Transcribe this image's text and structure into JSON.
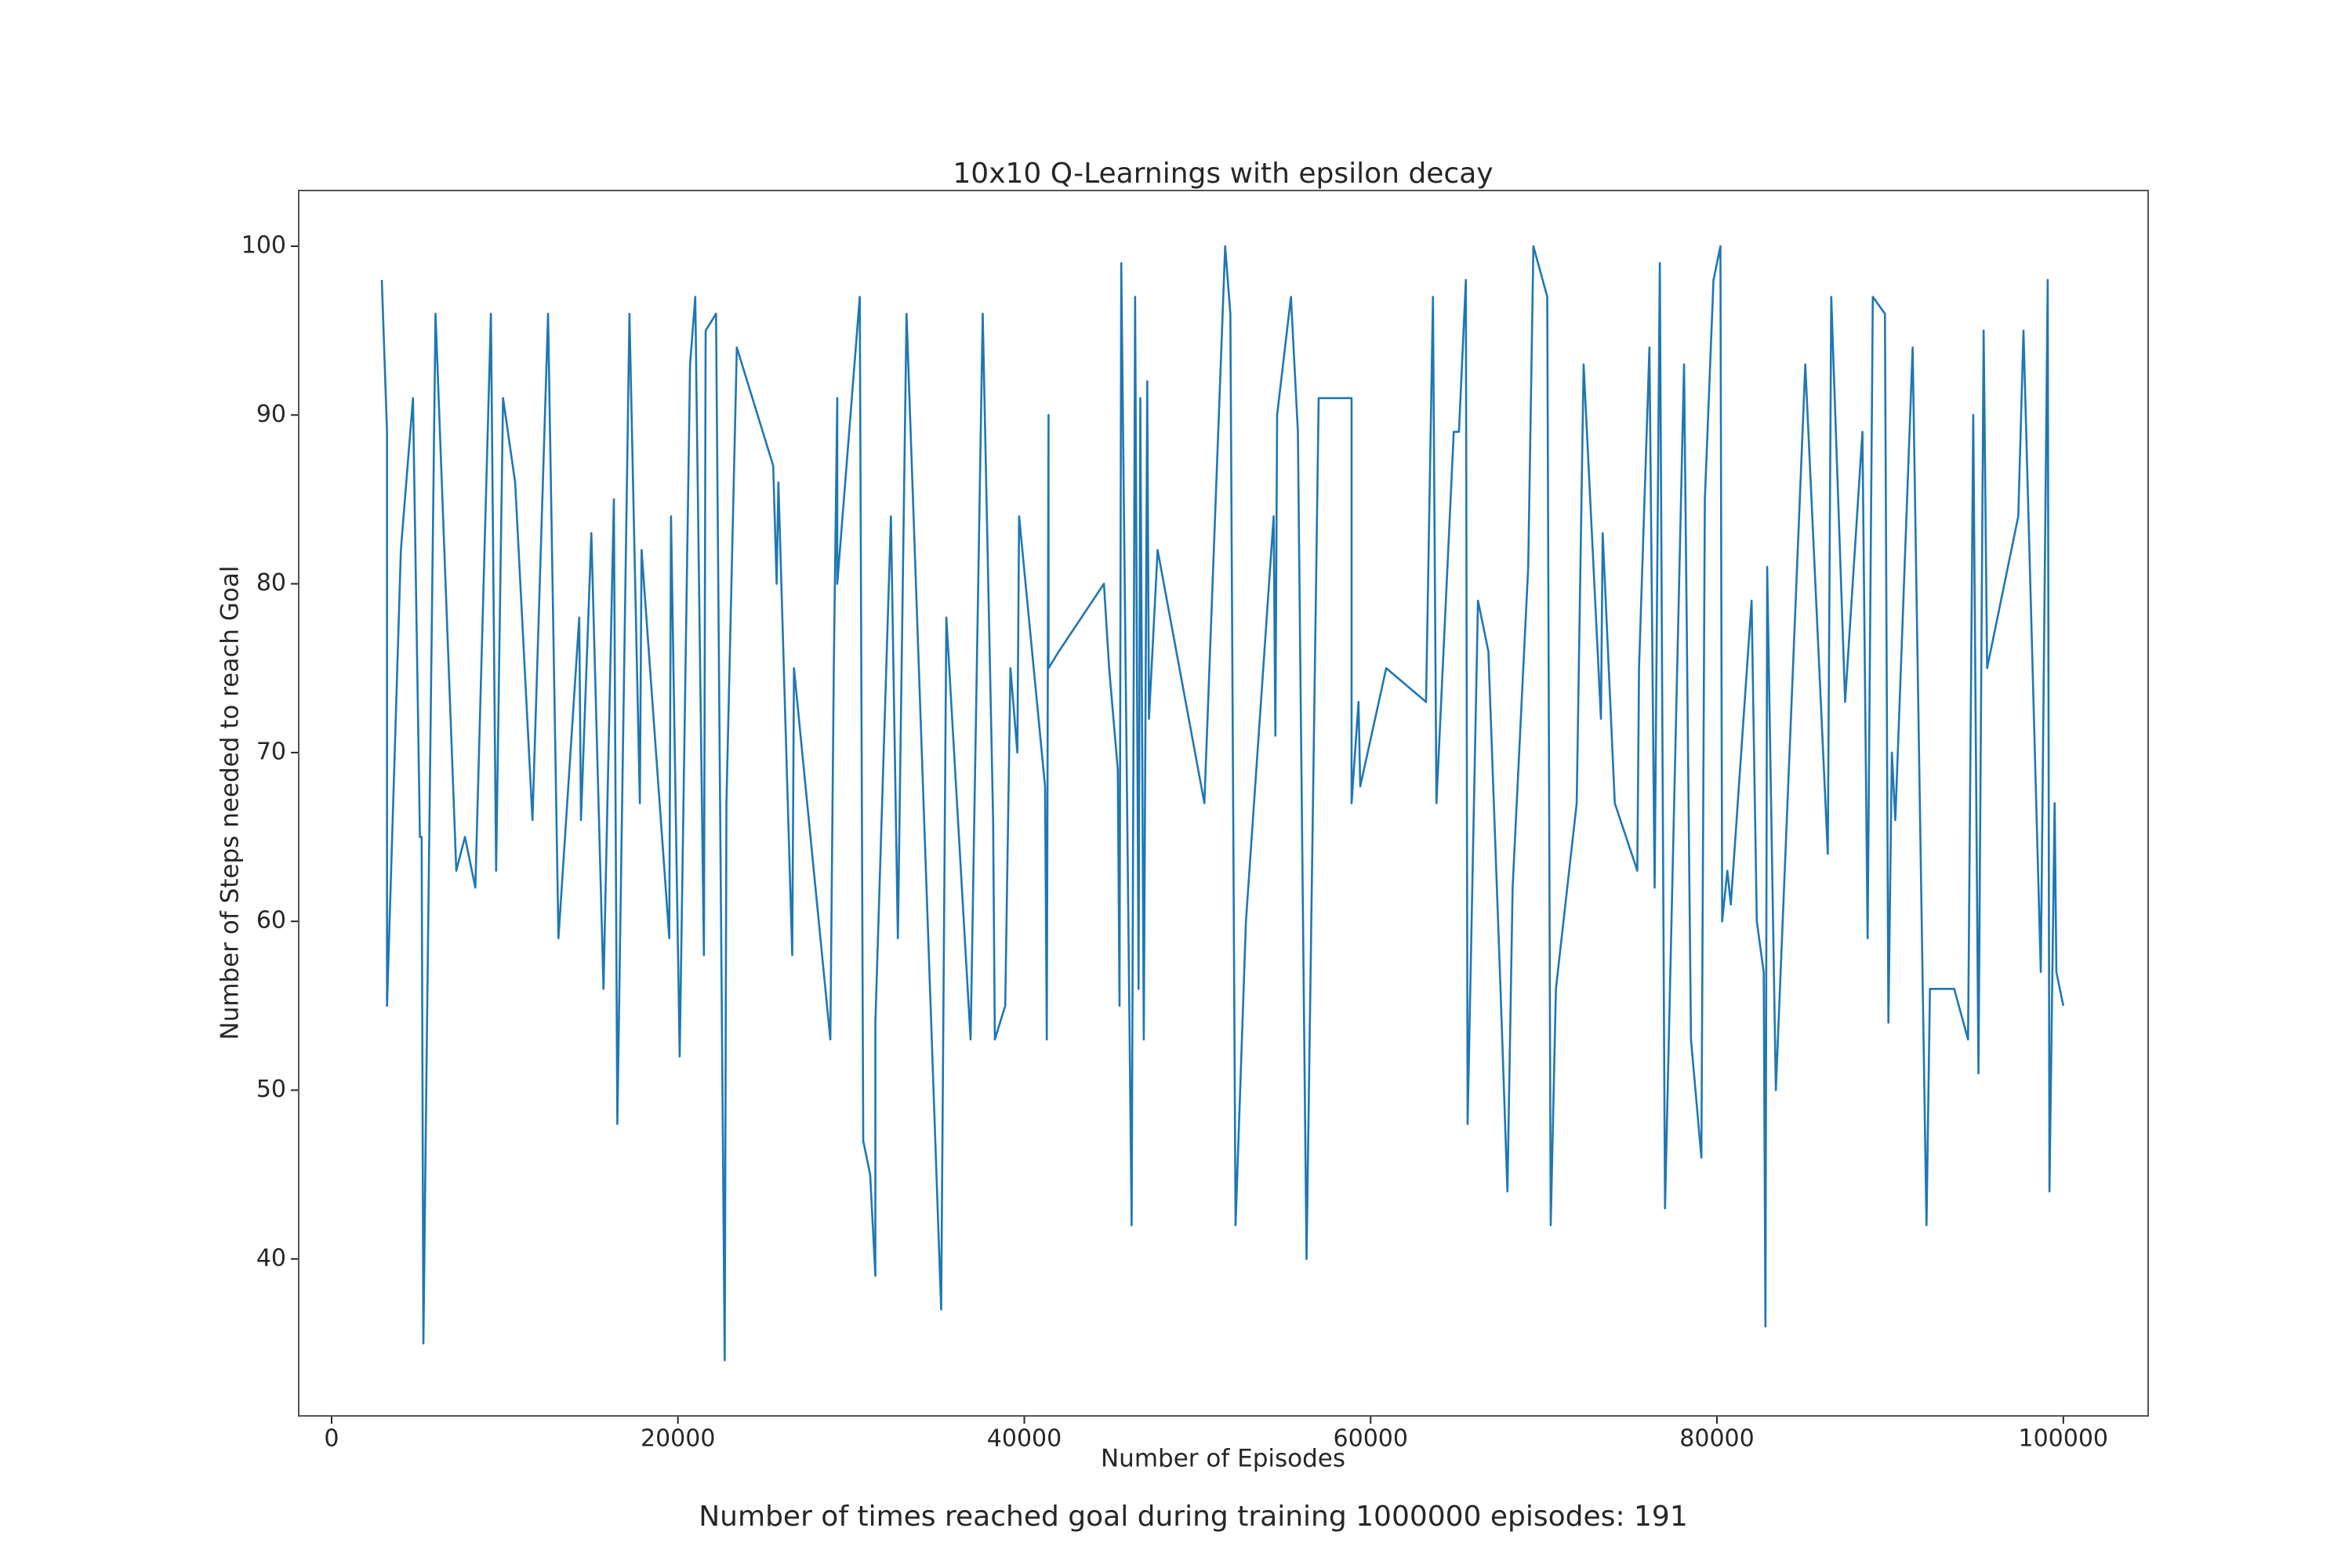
{
  "chart_data": {
    "type": "line",
    "title": "10x10 Q-Learnings with epsilon decay",
    "x_label": "Number of Episodes",
    "y_label": "Number of Steps needed to reach Goal",
    "annotation": "Number of times reached goal during training 1000000 episodes: 191",
    "color": "#1f77b4",
    "xlim": [
      -1900,
      104900
    ],
    "ylim": [
      30.7,
      103.3
    ],
    "xticks": [
      0,
      20000,
      40000,
      60000,
      80000,
      100000
    ],
    "yticks": [
      40,
      50,
      60,
      70,
      80,
      90,
      100
    ],
    "x": [
      2900,
      3200,
      3200,
      4000,
      4700,
      5100,
      5200,
      5300,
      5500,
      6000,
      7200,
      7700,
      8300,
      9200,
      9500,
      9900,
      10600,
      11600,
      12500,
      13100,
      14300,
      14400,
      15000,
      15700,
      16300,
      16500,
      17200,
      17800,
      17900,
      19500,
      19600,
      20100,
      20700,
      21000,
      21500,
      21600,
      22200,
      22700,
      22800,
      23400,
      25500,
      25700,
      25800,
      26600,
      26700,
      28800,
      29000,
      29200,
      29200,
      30500,
      30700,
      31100,
      31400,
      31400,
      32300,
      32700,
      33200,
      35200,
      35500,
      36900,
      37600,
      38200,
      38300,
      38900,
      39200,
      39600,
      39700,
      41200,
      41300,
      41400,
      41400,
      42000,
      44600,
      44900,
      45400,
      45500,
      45600,
      46200,
      46400,
      46600,
      46700,
      46900,
      47100,
      47200,
      47700,
      50400,
      51600,
      51900,
      52200,
      52800,
      54400,
      54500,
      54600,
      55400,
      55800,
      56300,
      57000,
      58900,
      58900,
      59300,
      59400,
      60900,
      63200,
      63600,
      63800,
      64800,
      65100,
      65500,
      65600,
      66200,
      66800,
      67500,
      67900,
      68200,
      69100,
      69400,
      70200,
      70400,
      70700,
      71900,
      72300,
      73300,
      73400,
      74100,
      75400,
      75500,
      76100,
      76400,
      76700,
      77000,
      78100,
      78500,
      79100,
      79300,
      79800,
      80200,
      80300,
      80600,
      80800,
      82000,
      82300,
      82700,
      82800,
      82900,
      83400,
      85100,
      86400,
      86600,
      87400,
      88400,
      88700,
      89000,
      89700,
      89900,
      90100,
      90300,
      91300,
      92100,
      92300,
      93700,
      94500,
      94800,
      95100,
      95400,
      95600,
      97400,
      97700,
      98700,
      99100,
      99200,
      99500,
      99600,
      100000
    ],
    "values": [
      98,
      89,
      55,
      82,
      91,
      65,
      65,
      35,
      53,
      96,
      63,
      65,
      62,
      96,
      63,
      91,
      86,
      66,
      96,
      59,
      78,
      66,
      83,
      56,
      85,
      48,
      96,
      67,
      82,
      59,
      84,
      52,
      93,
      97,
      58,
      95,
      96,
      34,
      67,
      94,
      87,
      80,
      86,
      58,
      75,
      53,
      75,
      91,
      80,
      97,
      47,
      45,
      39,
      54,
      84,
      59,
      96,
      37,
      78,
      53,
      96,
      66,
      53,
      55,
      75,
      70,
      84,
      68,
      53,
      90,
      75,
      76,
      80,
      75,
      69,
      55,
      99,
      42,
      97,
      56,
      91,
      53,
      92,
      72,
      82,
      67,
      100,
      96,
      42,
      60,
      84,
      71,
      90,
      97,
      89,
      40,
      91,
      91,
      67,
      73,
      68,
      75,
      73,
      97,
      67,
      89,
      89,
      98,
      48,
      79,
      76,
      56,
      44,
      62,
      81,
      100,
      97,
      42,
      56,
      67,
      93,
      72,
      83,
      67,
      63,
      75,
      94,
      62,
      99,
      43,
      93,
      53,
      46,
      85,
      98,
      100,
      60,
      63,
      61,
      79,
      60,
      57,
      36,
      81,
      50,
      93,
      64,
      97,
      73,
      89,
      59,
      97,
      96,
      54,
      70,
      66,
      94,
      42,
      56,
      56,
      53,
      90,
      51,
      95,
      75,
      84,
      95,
      57,
      98,
      44,
      67,
      57,
      55
    ]
  }
}
